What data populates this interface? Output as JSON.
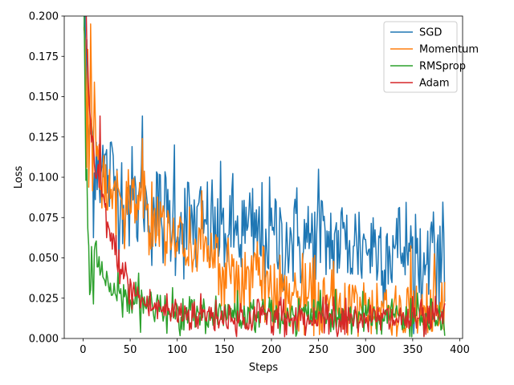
{
  "chart_data": {
    "type": "line",
    "title": "",
    "xlabel": "Steps",
    "ylabel": "Loss",
    "xlim": [
      -20,
      403
    ],
    "ylim": [
      0,
      0.2
    ],
    "xticks": [
      0,
      50,
      100,
      150,
      200,
      250,
      300,
      350,
      400
    ],
    "yticks": [
      0.0,
      0.025,
      0.05,
      0.075,
      0.1,
      0.125,
      0.15,
      0.175,
      0.2
    ],
    "xtick_labels": [
      "0",
      "50",
      "100",
      "150",
      "200",
      "250",
      "300",
      "350",
      "400"
    ],
    "ytick_labels": [
      "0.000",
      "0.025",
      "0.050",
      "0.075",
      "0.100",
      "0.125",
      "0.150",
      "0.175",
      "0.200"
    ],
    "grid": false,
    "legend_position": "top-right",
    "steps": 384,
    "series": [
      {
        "name": "SGD",
        "color": "#1f77b4",
        "control_x": [
          1,
          5,
          10,
          20,
          30,
          40,
          50,
          63,
          70,
          80,
          90,
          100,
          120,
          150,
          200,
          250,
          300,
          350,
          384
        ],
        "control_y": [
          0.2,
          0.13,
          0.12,
          0.105,
          0.1,
          0.09,
          0.085,
          0.082,
          0.08,
          0.077,
          0.075,
          0.073,
          0.07,
          0.067,
          0.063,
          0.06,
          0.058,
          0.055,
          0.052
        ],
        "noise": 0.017,
        "spikes": [
          [
            63,
            0.138
          ],
          [
            97,
            0.12
          ],
          [
            250,
            0.105
          ]
        ]
      },
      {
        "name": "Momentum",
        "color": "#ff7f0e",
        "control_x": [
          1,
          5,
          10,
          20,
          30,
          40,
          50,
          63,
          80,
          100,
          120,
          150,
          180,
          200,
          250,
          300,
          350,
          384
        ],
        "control_y": [
          0.2,
          0.14,
          0.11,
          0.1,
          0.09,
          0.085,
          0.082,
          0.085,
          0.075,
          0.062,
          0.055,
          0.045,
          0.035,
          0.03,
          0.022,
          0.02,
          0.018,
          0.016
        ],
        "noise": 0.012,
        "spikes": [
          [
            12,
            0.159
          ],
          [
            63,
            0.124
          ],
          [
            185,
            0.06
          ]
        ]
      },
      {
        "name": "RMSprop",
        "color": "#2ca02c",
        "control_x": [
          1,
          3,
          5,
          8,
          12,
          20,
          30,
          40,
          60,
          80,
          100,
          150,
          200,
          250,
          300,
          350,
          384
        ],
        "control_y": [
          0.2,
          0.1,
          0.055,
          0.045,
          0.05,
          0.04,
          0.03,
          0.025,
          0.022,
          0.018,
          0.017,
          0.015,
          0.014,
          0.014,
          0.013,
          0.013,
          0.012
        ],
        "noise": 0.006,
        "spikes": [
          [
            4,
            0.105
          ],
          [
            384,
            0.002
          ]
        ]
      },
      {
        "name": "Adam",
        "color": "#d62728",
        "control_x": [
          1,
          3,
          6,
          10,
          15,
          20,
          25,
          30,
          40,
          50,
          70,
          100,
          150,
          200,
          250,
          300,
          350,
          384
        ],
        "control_y": [
          0.2,
          0.2,
          0.15,
          0.11,
          0.1,
          0.09,
          0.075,
          0.06,
          0.045,
          0.03,
          0.02,
          0.016,
          0.014,
          0.013,
          0.013,
          0.012,
          0.012,
          0.012
        ],
        "noise": 0.006,
        "spikes": [
          [
            18,
            0.138
          ],
          [
            223,
            0.003
          ]
        ]
      }
    ]
  }
}
